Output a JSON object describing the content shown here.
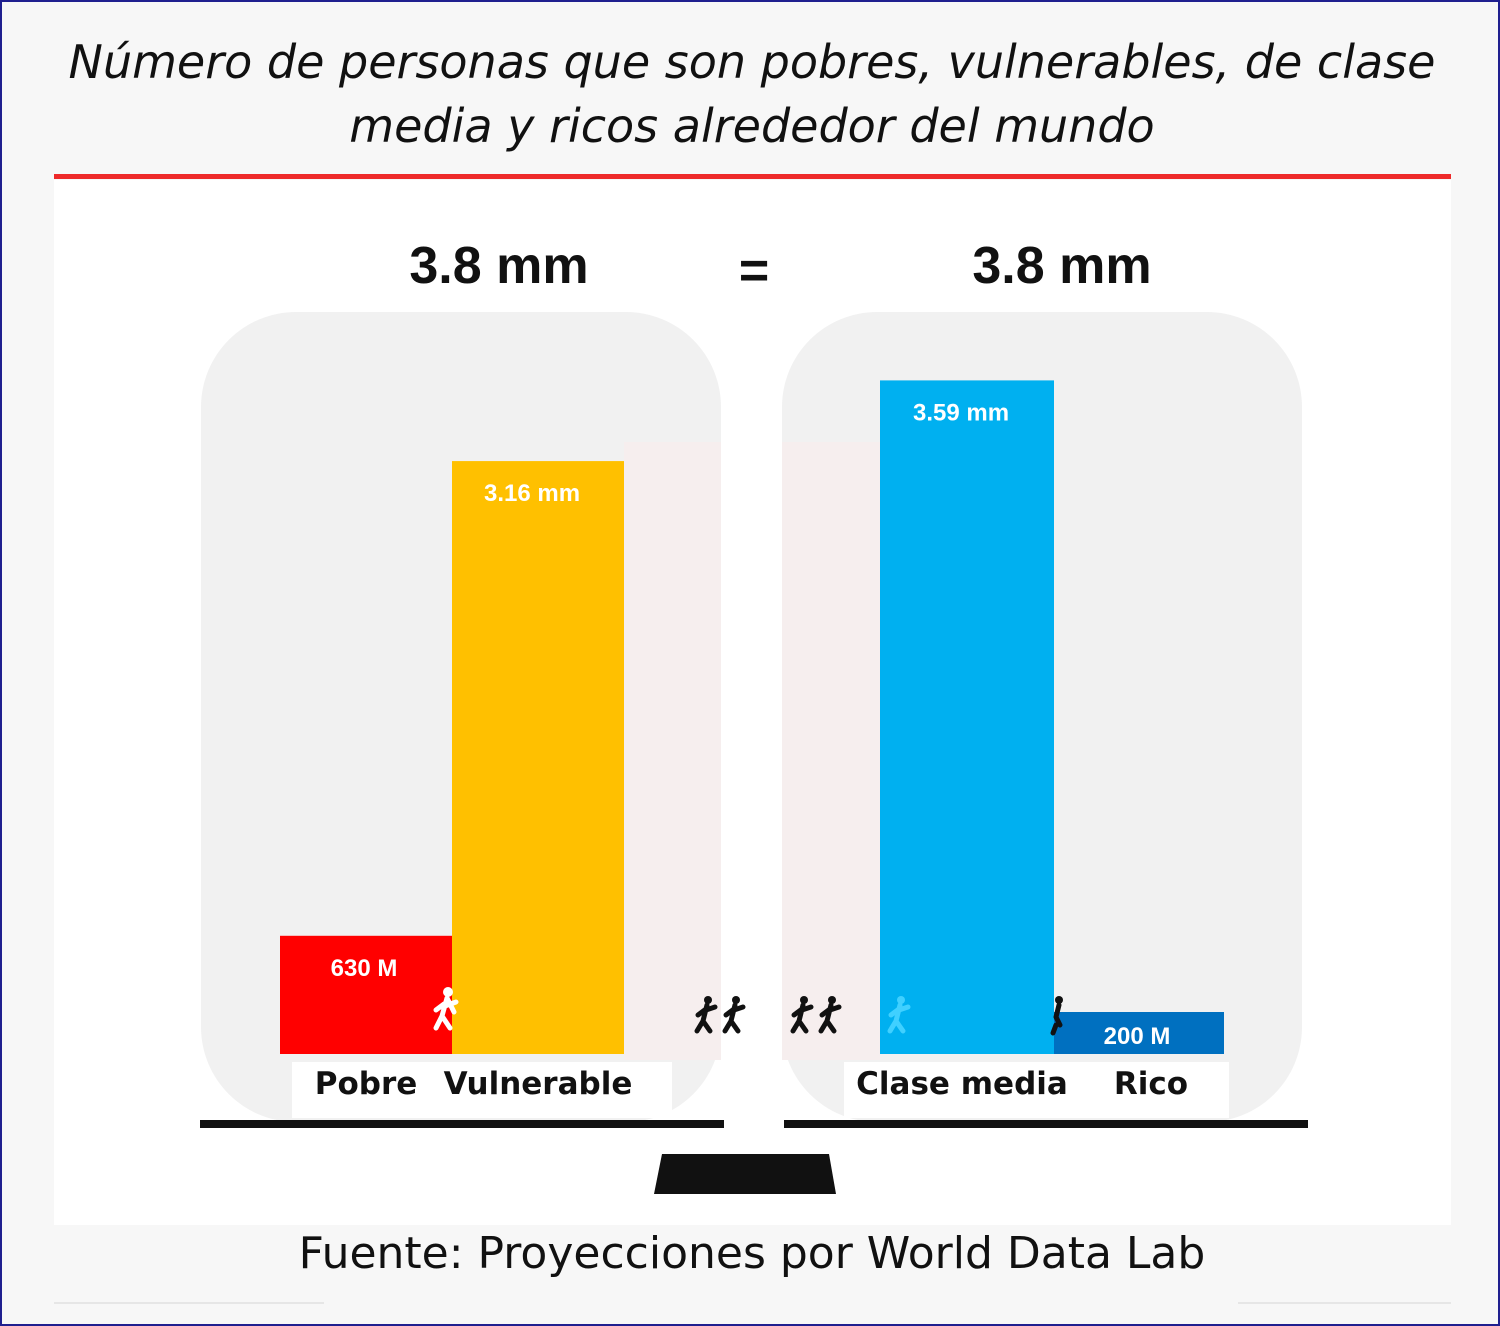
{
  "chart_data": {
    "type": "bar",
    "title": "Número de personas que son pobres, vulnerables, de clase media y ricos alrededor del mundo",
    "groups": [
      {
        "total_label": "3.8 mm",
        "total": 3.79,
        "categories": [
          "Pobre",
          "Vulnerable"
        ],
        "values": [
          0.63,
          3.16
        ],
        "value_labels": [
          "630 M",
          "3.16 mm"
        ],
        "colors": [
          "#ff0000",
          "#ffc000"
        ]
      },
      {
        "total_label": "3.8 mm",
        "total": 3.79,
        "categories": [
          "Clase media",
          "Rico"
        ],
        "values": [
          3.59,
          0.2
        ],
        "value_labels": [
          "3.59 mm",
          "200 M"
        ],
        "colors": [
          "#00b0f0",
          "#0070c0"
        ]
      }
    ],
    "equals_sign": "=",
    "units": "miles de millones de personas",
    "ylim": [
      0,
      3.8
    ],
    "grid": false,
    "legend": "none"
  },
  "source": "Fuente: Proyecciones por World Data Lab",
  "colors": {
    "title_rule": "#ee2a2a",
    "scale_beam": "#111111",
    "pan_bg": "#f1f1f1",
    "frame": "#1f1f8f"
  },
  "icons": [
    "walking-person-icon",
    "walking-people-icon",
    "scale-base-icon"
  ]
}
